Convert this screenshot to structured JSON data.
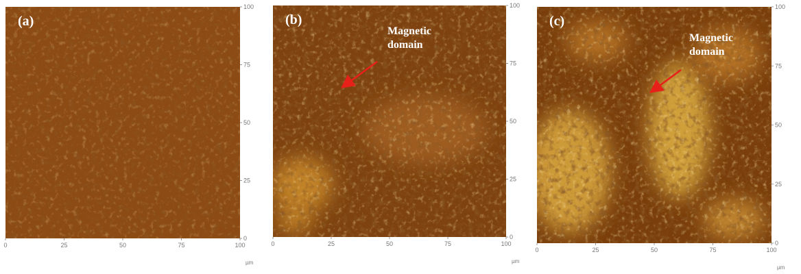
{
  "panels": [
    {
      "label": "(a)",
      "xticks": [
        0,
        25,
        50,
        75,
        100
      ],
      "yticks": [
        0,
        25,
        50,
        75,
        100
      ],
      "unit": "µm"
    },
    {
      "label": "(b)",
      "xticks": [
        0,
        25,
        50,
        75,
        100
      ],
      "yticks": [
        0,
        25,
        50,
        75,
        100
      ],
      "unit": "µm",
      "annotation": [
        "Magnetic",
        "domain"
      ]
    },
    {
      "label": "(c)",
      "xticks": [
        0,
        25,
        50,
        75,
        100
      ],
      "yticks": [
        0,
        25,
        50,
        75,
        100
      ],
      "unit": "µm",
      "annotation": [
        "Magnetic",
        "domain"
      ]
    }
  ]
}
